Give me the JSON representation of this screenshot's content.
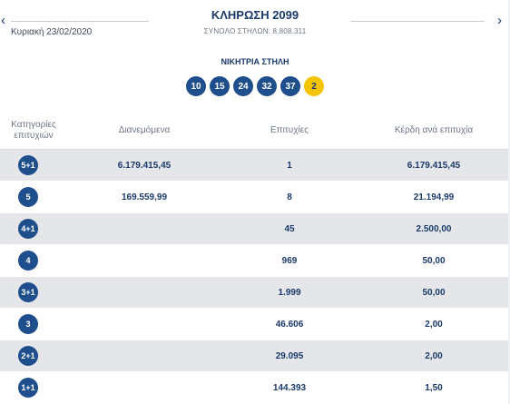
{
  "header": {
    "date": "Κυριακή 23/02/2020",
    "draw_title": "ΚΛΗΡΩΣΗ 2099",
    "total_columns": "ΣΥΝΟΛΟ ΣΤΗΛΩΝ: 8.808.311",
    "prev_icon": "chevron-left-icon",
    "next_icon": "chevron-right-icon"
  },
  "winning": {
    "label": "ΝΙΚΗΤΡΙΑ ΣΤΗΛΗ",
    "numbers": [
      "10",
      "15",
      "24",
      "32",
      "37"
    ],
    "joker": "2",
    "ball_color": "#1f4e8c",
    "joker_color": "#f5c400"
  },
  "table": {
    "headers": [
      "Κατηγορίες\nεπιτυχιών",
      "Διανεμόμενα",
      "Επιτυχίες",
      "Κέρδη ανά επιτυχία"
    ],
    "rows": [
      {
        "category": "5+1",
        "distributed": "6.179.415,45",
        "winners": "1",
        "prize": "6.179.415,45"
      },
      {
        "category": "5",
        "distributed": "169.559,99",
        "winners": "8",
        "prize": "21.194,99"
      },
      {
        "category": "4+1",
        "distributed": "",
        "winners": "45",
        "prize": "2.500,00"
      },
      {
        "category": "4",
        "distributed": "",
        "winners": "969",
        "prize": "50,00"
      },
      {
        "category": "3+1",
        "distributed": "",
        "winners": "1.999",
        "prize": "50,00"
      },
      {
        "category": "3",
        "distributed": "",
        "winners": "46.606",
        "prize": "2,00"
      },
      {
        "category": "2+1",
        "distributed": "",
        "winners": "29.095",
        "prize": "2,00"
      },
      {
        "category": "1+1",
        "distributed": "",
        "winners": "144.393",
        "prize": "1,50"
      }
    ]
  }
}
